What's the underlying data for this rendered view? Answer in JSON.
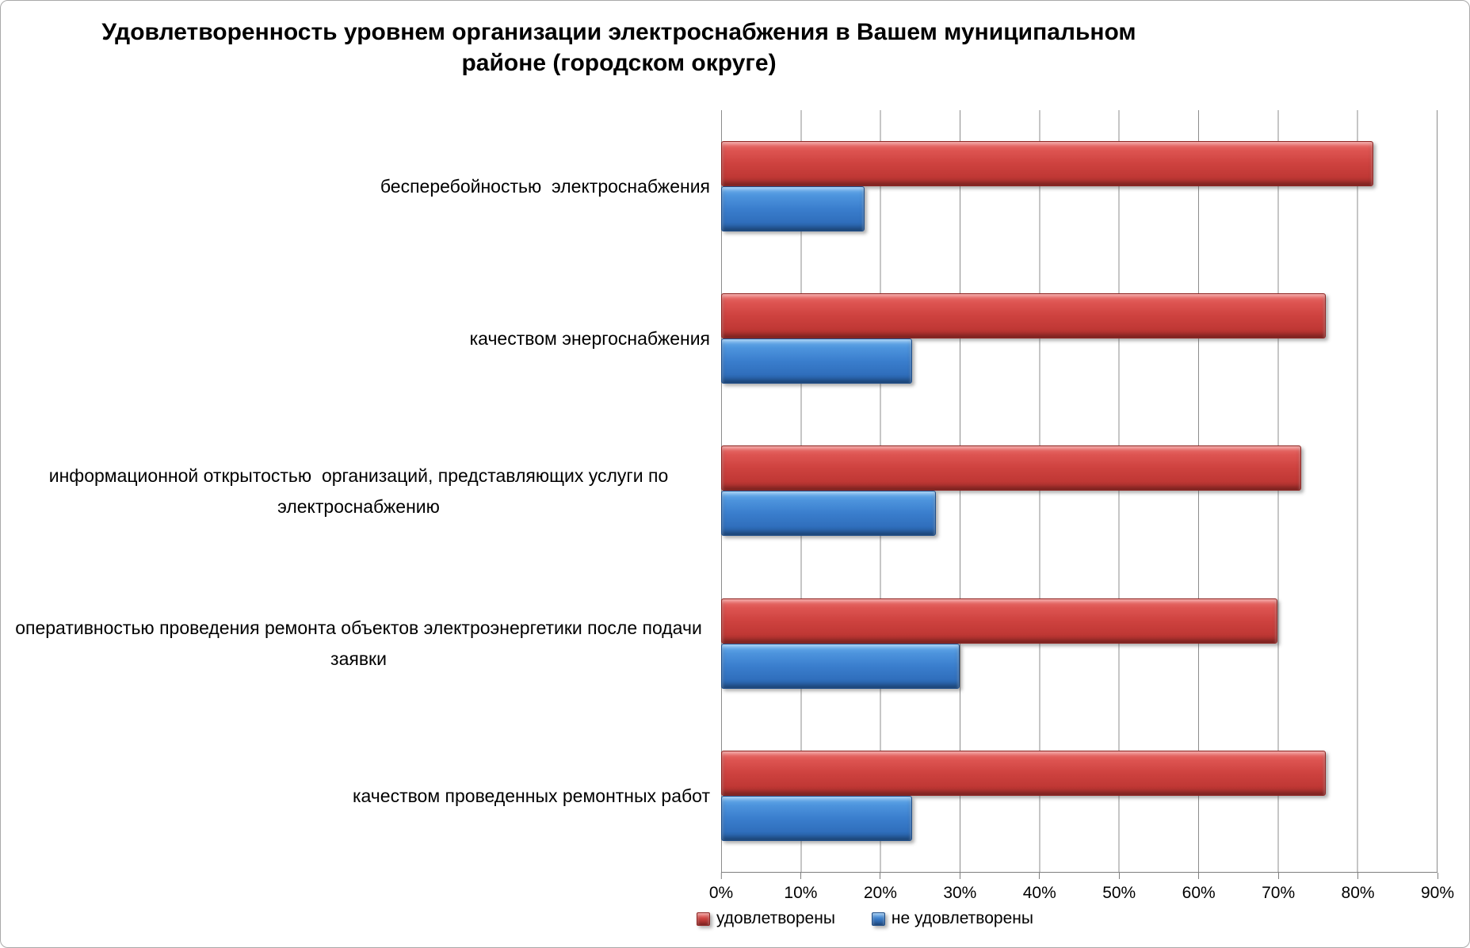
{
  "chart": {
    "title": "Удовлетворенность уровнем организации электроснабжения в Вашем муниципальном районе (городском округе)",
    "title_lines": [
      "Удовлетворенность уровнем организации электроснабжения в Вашем муниципальном",
      "районе (городском округе)"
    ],
    "legend": [
      {
        "label": "удовлетворены",
        "color": "#c23a37"
      },
      {
        "label": "не удовлетворены",
        "color": "#3a7ecd"
      }
    ]
  },
  "chart_data": {
    "type": "bar",
    "orientation": "horizontal",
    "title": "Удовлетворенность уровнем организации электроснабжения в Вашем муниципальном районе (городском округе)",
    "categories": [
      "бесперебойностью  электроснабжения",
      "качеством энергоснабжения",
      "информационной открытостью  организаций, представляющих услуги по электроснабжению",
      "оперативностью проведения ремонта объектов электроэнергетики после подачи заявки",
      "качеством проведенных ремонтных работ"
    ],
    "series": [
      {
        "name": "удовлетворены",
        "color": "#c23a37",
        "values": [
          82,
          76,
          73,
          70,
          76
        ]
      },
      {
        "name": "не удовлетворены",
        "color": "#3a7ecd",
        "values": [
          18,
          24,
          27,
          30,
          24
        ]
      }
    ],
    "x_ticks": [
      "0%",
      "10%",
      "20%",
      "30%",
      "40%",
      "50%",
      "60%",
      "70%",
      "80%",
      "90%"
    ],
    "xlim": [
      0,
      90
    ],
    "unit": "%",
    "grid": true,
    "legend_position": "bottom",
    "xlabel": "",
    "ylabel": ""
  }
}
